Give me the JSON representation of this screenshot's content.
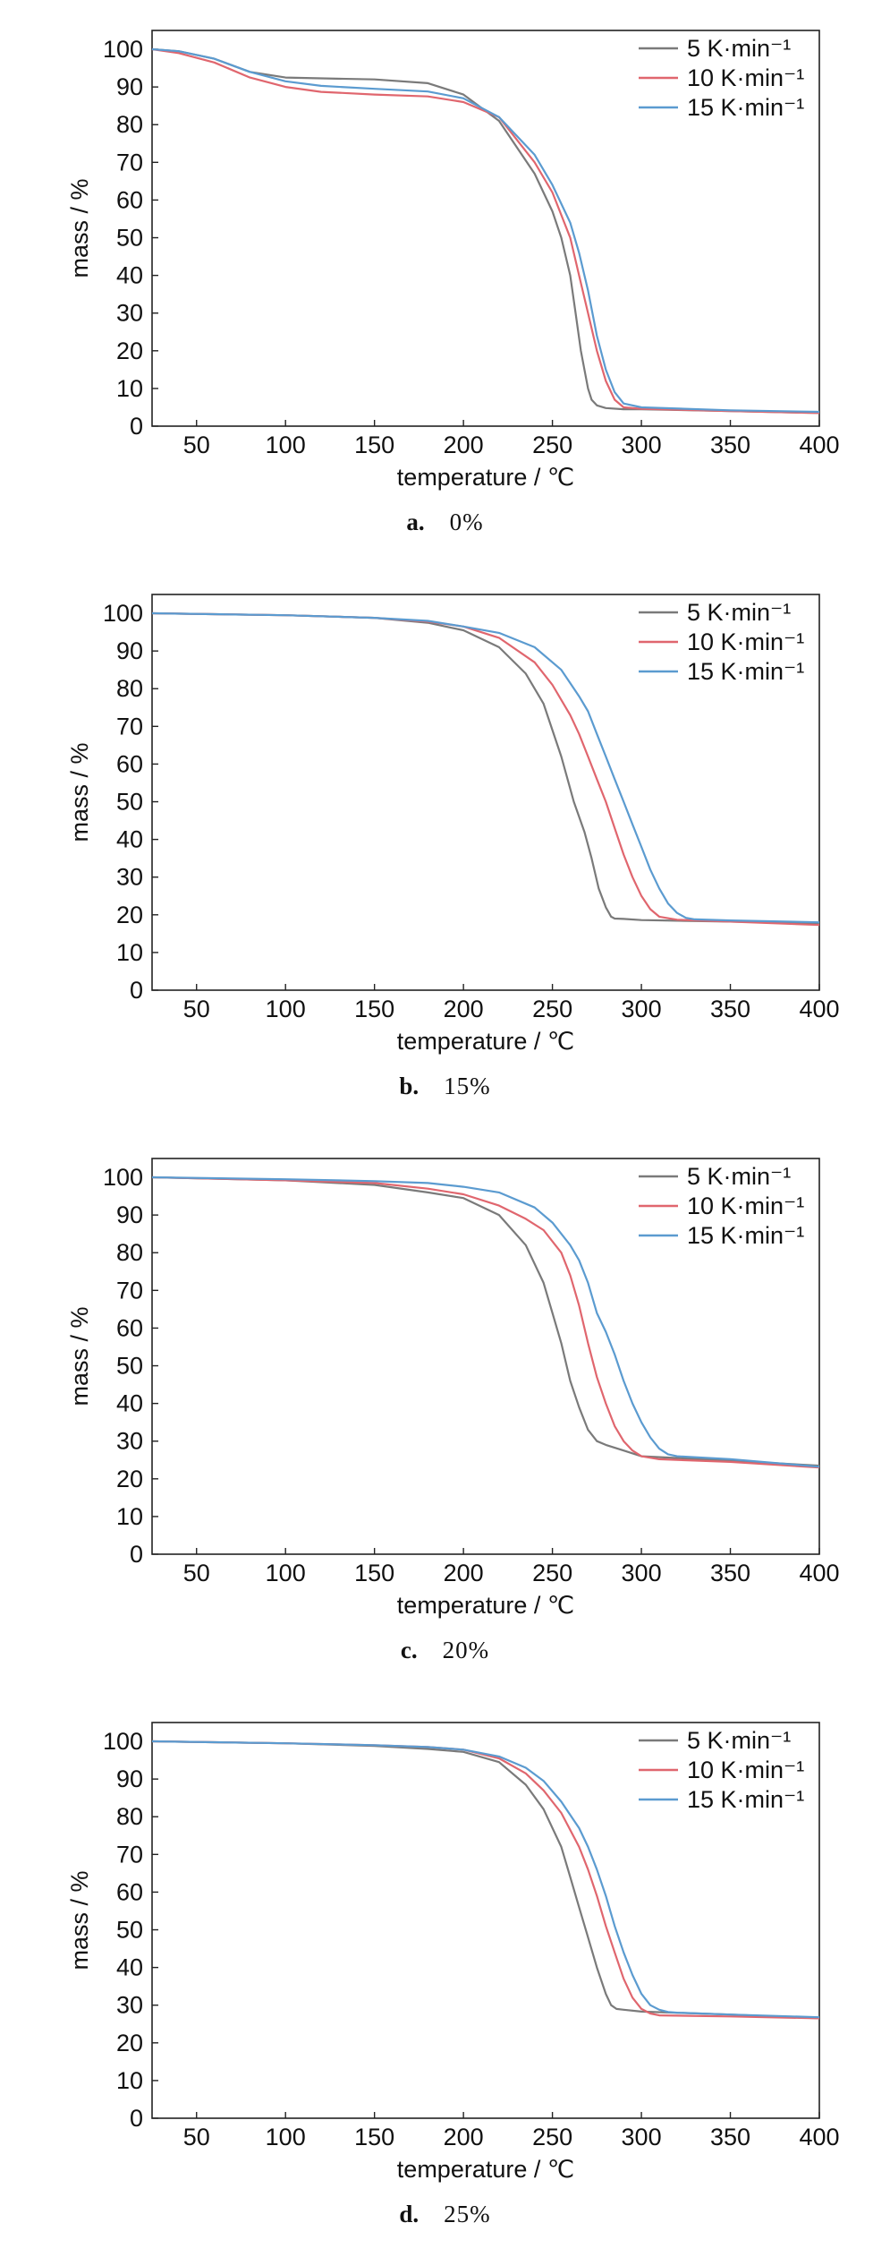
{
  "chart_data": [
    {
      "panel": "a.",
      "caption": "0%",
      "type": "line",
      "xlabel": "temperature / ℃",
      "ylabel": "mass / %",
      "xlim": [
        25,
        400
      ],
      "ylim": [
        0,
        105
      ],
      "xticks": [
        50,
        100,
        150,
        200,
        250,
        300,
        350,
        400
      ],
      "yticks": [
        0,
        10,
        20,
        30,
        40,
        50,
        60,
        70,
        80,
        90,
        100
      ],
      "legend_position": "top-right",
      "grid": false,
      "series": [
        {
          "name": "5 K·min⁻¹",
          "color": "#7a7a7a",
          "x": [
            25,
            40,
            60,
            80,
            100,
            120,
            150,
            180,
            200,
            220,
            240,
            250,
            255,
            260,
            263,
            266,
            268,
            270,
            272,
            275,
            280,
            290,
            300,
            350,
            400
          ],
          "y": [
            100,
            99.5,
            97.5,
            94,
            92.5,
            92.3,
            92,
            91,
            88,
            81,
            67,
            57,
            50,
            40,
            30,
            20,
            15,
            10,
            7,
            5.5,
            4.8,
            4.5,
            4.5,
            4,
            3.5
          ]
        },
        {
          "name": "10 K·min⁻¹",
          "color": "#e0666e",
          "x": [
            25,
            40,
            60,
            80,
            100,
            120,
            150,
            180,
            200,
            220,
            240,
            250,
            260,
            265,
            270,
            275,
            280,
            285,
            290,
            300,
            350,
            400
          ],
          "y": [
            100,
            99,
            96.5,
            92.5,
            90,
            88.7,
            88,
            87.5,
            86,
            82,
            70,
            62,
            50,
            40,
            30,
            20,
            12,
            7,
            5,
            4.6,
            4,
            3.5
          ]
        },
        {
          "name": "15 K·min⁻¹",
          "color": "#5b9bd0",
          "x": [
            25,
            40,
            60,
            80,
            100,
            120,
            150,
            180,
            200,
            220,
            240,
            250,
            260,
            265,
            270,
            275,
            280,
            285,
            290,
            300,
            350,
            400
          ],
          "y": [
            100,
            99.5,
            97.5,
            94,
            91.5,
            90.3,
            89.5,
            88.8,
            87,
            82,
            72,
            64,
            54,
            46,
            36,
            24,
            15,
            9,
            6,
            5,
            4.2,
            3.8
          ]
        }
      ]
    },
    {
      "panel": "b.",
      "caption": "15%",
      "type": "line",
      "xlabel": "temperature / ℃",
      "ylabel": "mass / %",
      "xlim": [
        25,
        400
      ],
      "ylim": [
        0,
        105
      ],
      "xticks": [
        50,
        100,
        150,
        200,
        250,
        300,
        350,
        400
      ],
      "yticks": [
        0,
        10,
        20,
        30,
        40,
        50,
        60,
        70,
        80,
        90,
        100
      ],
      "legend_position": "top-right",
      "grid": false,
      "series": [
        {
          "name": "5 K·min⁻¹",
          "color": "#7a7a7a",
          "x": [
            25,
            100,
            150,
            180,
            200,
            220,
            235,
            245,
            255,
            262,
            268,
            272,
            276,
            280,
            283,
            285,
            290,
            300,
            350,
            400
          ],
          "y": [
            100,
            99.5,
            98.8,
            97.5,
            95.5,
            91,
            84,
            76,
            62,
            50,
            42,
            35,
            27,
            22,
            19.5,
            19,
            18.9,
            18.6,
            18.2,
            17.8
          ]
        },
        {
          "name": "10 K·min⁻¹",
          "color": "#e0666e",
          "x": [
            25,
            100,
            150,
            180,
            200,
            220,
            240,
            250,
            260,
            265,
            270,
            275,
            280,
            285,
            290,
            295,
            300,
            305,
            310,
            320,
            350,
            400
          ],
          "y": [
            100,
            99.5,
            98.8,
            97.8,
            96.5,
            93.5,
            87,
            81,
            73,
            68,
            62,
            56,
            50,
            43,
            36,
            30,
            25,
            21.5,
            19.5,
            18.7,
            18.2,
            17.3
          ]
        },
        {
          "name": "15 K·min⁻¹",
          "color": "#5b9bd0",
          "x": [
            25,
            100,
            150,
            180,
            200,
            220,
            240,
            255,
            265,
            270,
            275,
            280,
            285,
            290,
            295,
            300,
            305,
            310,
            315,
            320,
            325,
            330,
            350,
            400
          ],
          "y": [
            100,
            99.5,
            98.8,
            98,
            96.5,
            94.8,
            91,
            85,
            78,
            74,
            68,
            62,
            56,
            50,
            44,
            38,
            32,
            27,
            23,
            20.5,
            19.2,
            18.8,
            18.5,
            18
          ]
        }
      ]
    },
    {
      "panel": "c.",
      "caption": "20%",
      "type": "line",
      "xlabel": "temperature / ℃",
      "ylabel": "mass / %",
      "xlim": [
        25,
        400
      ],
      "ylim": [
        0,
        105
      ],
      "xticks": [
        50,
        100,
        150,
        200,
        250,
        300,
        350,
        400
      ],
      "yticks": [
        0,
        10,
        20,
        30,
        40,
        50,
        60,
        70,
        80,
        90,
        100
      ],
      "legend_position": "top-right",
      "grid": false,
      "series": [
        {
          "name": "5 K·min⁻¹",
          "color": "#7a7a7a",
          "x": [
            25,
            100,
            150,
            180,
            200,
            220,
            235,
            245,
            250,
            255,
            260,
            265,
            270,
            275,
            280,
            290,
            300,
            350,
            400
          ],
          "y": [
            100,
            99.2,
            98,
            96,
            94.5,
            90,
            82,
            72,
            64,
            56,
            46,
            39,
            33,
            30,
            29,
            27.5,
            26,
            24.8,
            23.5
          ]
        },
        {
          "name": "10 K·min⁻¹",
          "color": "#e0666e",
          "x": [
            25,
            100,
            150,
            180,
            200,
            220,
            235,
            245,
            255,
            260,
            265,
            270,
            275,
            280,
            285,
            290,
            295,
            300,
            310,
            350,
            400
          ],
          "y": [
            100,
            99.2,
            98.5,
            97,
            95.5,
            92.5,
            89,
            86,
            80,
            74,
            66,
            56,
            47,
            40,
            34,
            30,
            27.5,
            26,
            25.2,
            24.5,
            23
          ]
        },
        {
          "name": "15 K·min⁻¹",
          "color": "#5b9bd0",
          "x": [
            25,
            100,
            150,
            180,
            200,
            220,
            240,
            250,
            260,
            265,
            270,
            275,
            280,
            285,
            290,
            295,
            300,
            305,
            310,
            315,
            320,
            350,
            400
          ],
          "y": [
            100,
            99.5,
            99,
            98.5,
            97.5,
            96,
            92,
            88,
            82,
            78,
            72,
            64,
            59,
            53,
            46,
            40,
            35,
            31,
            28,
            26.5,
            26,
            25.2,
            23.2
          ]
        }
      ]
    },
    {
      "panel": "d.",
      "caption": "25%",
      "type": "line",
      "xlabel": "temperature / ℃",
      "ylabel": "mass / %",
      "xlim": [
        25,
        400
      ],
      "ylim": [
        0,
        105
      ],
      "xticks": [
        50,
        100,
        150,
        200,
        250,
        300,
        350,
        400
      ],
      "yticks": [
        0,
        10,
        20,
        30,
        40,
        50,
        60,
        70,
        80,
        90,
        100
      ],
      "legend_position": "top-right",
      "grid": false,
      "series": [
        {
          "name": "5 K·min⁻¹",
          "color": "#7a7a7a",
          "x": [
            25,
            100,
            150,
            180,
            200,
            220,
            235,
            245,
            255,
            260,
            265,
            270,
            275,
            280,
            283,
            286,
            290,
            300,
            350,
            400
          ],
          "y": [
            100,
            99.5,
            98.8,
            98,
            97.2,
            94.5,
            88.5,
            82,
            72,
            64,
            56,
            48,
            40,
            33,
            30,
            29,
            28.8,
            28.3,
            27.5,
            26.5
          ]
        },
        {
          "name": "10 K·min⁻¹",
          "color": "#e0666e",
          "x": [
            25,
            100,
            150,
            180,
            200,
            220,
            235,
            245,
            255,
            265,
            270,
            275,
            280,
            285,
            290,
            295,
            300,
            305,
            310,
            350,
            400
          ],
          "y": [
            100,
            99.5,
            99,
            98.5,
            97.8,
            95.5,
            91.5,
            87,
            81,
            72,
            66,
            59,
            51,
            44,
            37,
            32,
            29,
            27.8,
            27.3,
            27,
            26.5
          ]
        },
        {
          "name": "15 K·min⁻¹",
          "color": "#5b9bd0",
          "x": [
            25,
            100,
            150,
            180,
            200,
            220,
            235,
            245,
            255,
            265,
            270,
            275,
            280,
            285,
            290,
            295,
            300,
            305,
            310,
            315,
            320,
            350,
            400
          ],
          "y": [
            100,
            99.5,
            99,
            98.5,
            97.8,
            96,
            93,
            89.5,
            84,
            77,
            72,
            66,
            59,
            51,
            44,
            38,
            33,
            30,
            28.8,
            28.2,
            28,
            27.5,
            26.8
          ]
        }
      ]
    }
  ]
}
